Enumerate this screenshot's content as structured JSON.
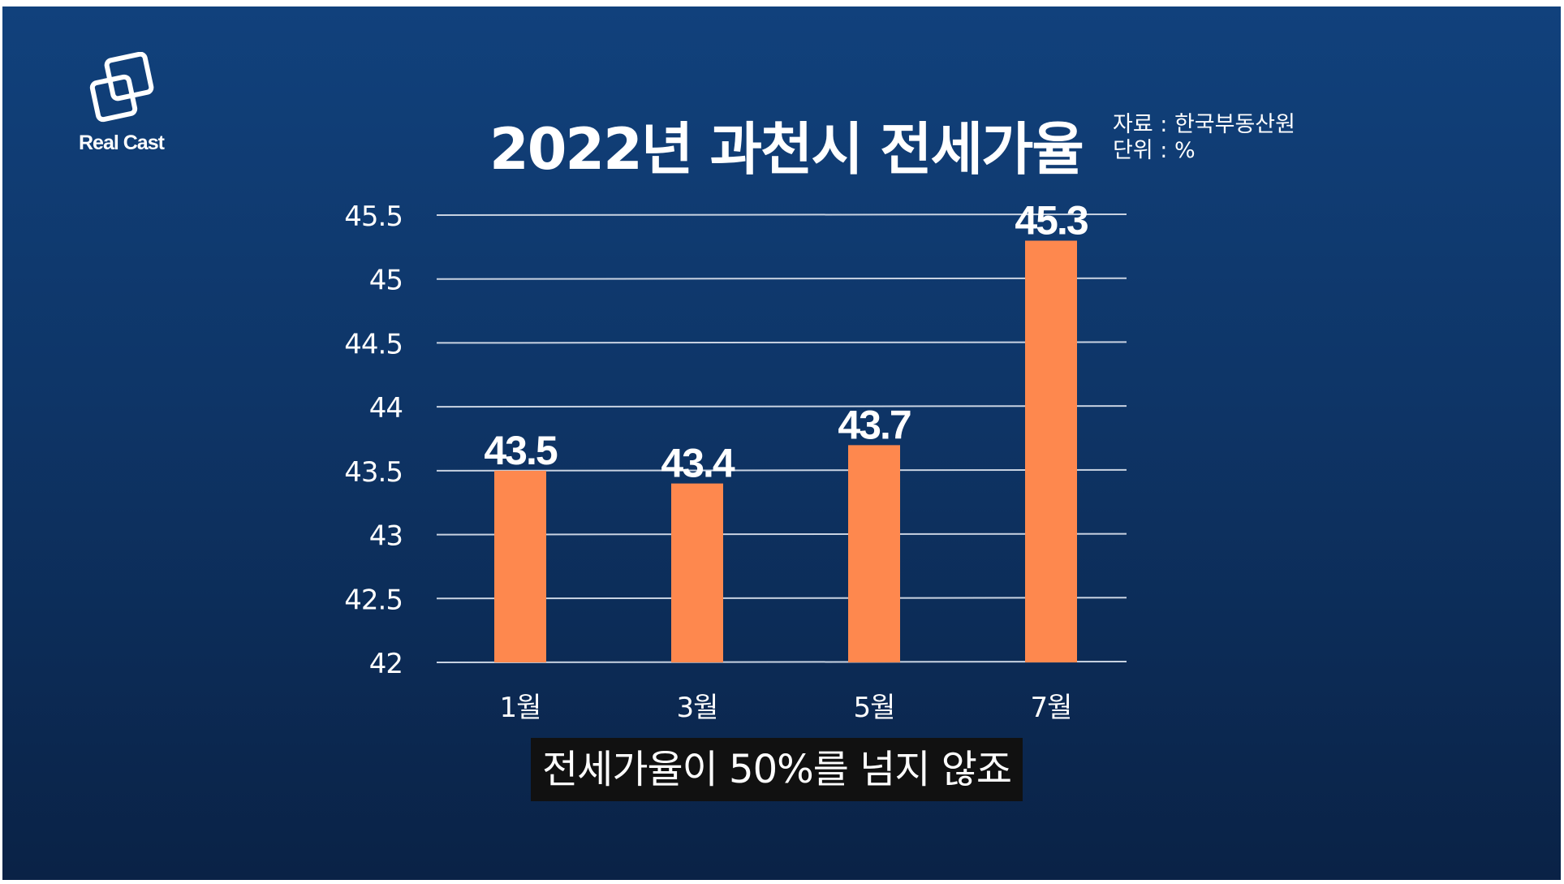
{
  "logo": {
    "text": "Real Cast"
  },
  "source": {
    "source_line": "자료 : 한국부동산원",
    "unit_line": "단위 : %"
  },
  "subtitle": "전세가율이 50%를 넘지 않죠",
  "colors": {
    "bar": "#fe884e",
    "grid": "#c9d3e2",
    "text": "#ffffff",
    "caption_bg": "#111111"
  },
  "chart_data": {
    "type": "bar",
    "title": "2022년 과천시 전세가율",
    "xlabel": "",
    "ylabel": "",
    "categories": [
      "1월",
      "3월",
      "5월",
      "7월"
    ],
    "values": [
      43.5,
      43.4,
      43.7,
      45.3
    ],
    "value_labels": [
      "43.5",
      "43.4",
      "43.7",
      "45.3"
    ],
    "ylim": [
      42,
      45.5
    ],
    "yticks": [
      "42",
      "42.5",
      "43",
      "43.5",
      "44",
      "44.5",
      "45",
      "45.5"
    ],
    "grid": true,
    "legend": "none"
  }
}
